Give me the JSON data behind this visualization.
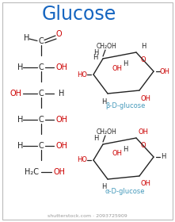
{
  "title": "Glucose",
  "title_color": "#1565c0",
  "bg_color": "#ffffff",
  "border_color": "#bbbbbb",
  "watermark": "shutterstock.com · 2093725909",
  "black": "#222222",
  "red": "#cc0000",
  "blue": "#4499bb",
  "beta_label": "β-D-glucose",
  "alpha_label": "α-D-glucose"
}
